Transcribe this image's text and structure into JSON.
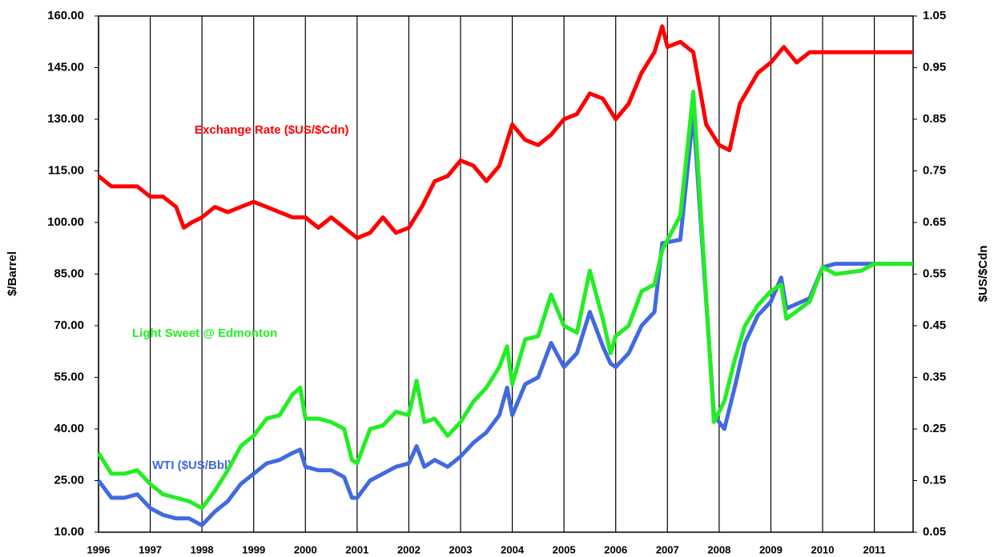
{
  "chart_data": {
    "type": "line",
    "xticks": [
      1996,
      1997,
      1998,
      1999,
      2000,
      2001,
      2002,
      2003,
      2004,
      2005,
      2006,
      2007,
      2008,
      2009,
      2010,
      2011
    ],
    "xlim": [
      1996,
      2011.75
    ],
    "ylim": [
      10,
      160
    ],
    "yticks": [
      {
        "value": 10,
        "label": "10.00"
      },
      {
        "value": 25,
        "label": "25.00"
      },
      {
        "value": 40,
        "label": "40.00"
      },
      {
        "value": 55,
        "label": "55.00"
      },
      {
        "value": 70,
        "label": "70.00"
      },
      {
        "value": 85,
        "label": "85.00"
      },
      {
        "value": 100,
        "label": "100.00"
      },
      {
        "value": 115,
        "label": "115.00"
      },
      {
        "value": 130,
        "label": "130.00"
      },
      {
        "value": 145,
        "label": "145.00"
      },
      {
        "value": 160,
        "label": "160.00"
      }
    ],
    "y2lim": [
      0.05,
      1.05
    ],
    "y2ticks": [
      0.05,
      0.15,
      0.25,
      0.35,
      0.45,
      0.55,
      0.65,
      0.75,
      0.85,
      0.95,
      1.05
    ],
    "ylabel": "$/Barrel",
    "y2label": "$US/$Cdn",
    "grid": true,
    "series": [
      {
        "name": "Exchange Rate ($US/$Cdn)",
        "color": "#ff0000",
        "axis": "y2",
        "x": [
          1996,
          1996.25,
          1996.5,
          1996.75,
          1997,
          1997.25,
          1997.5,
          1997.65,
          1997.8,
          1998,
          1998.25,
          1998.5,
          1998.75,
          1999,
          1999.25,
          1999.5,
          1999.75,
          2000,
          2000.25,
          2000.5,
          2000.75,
          2001,
          2001.25,
          2001.5,
          2001.75,
          2002,
          2002.25,
          2002.5,
          2002.75,
          2003,
          2003.25,
          2003.5,
          2003.75,
          2004,
          2004.25,
          2004.5,
          2004.75,
          2005,
          2005.25,
          2005.5,
          2005.75,
          2006,
          2006.25,
          2006.5,
          2006.75,
          2006.9,
          2007,
          2007.25,
          2007.5,
          2007.75,
          2008,
          2008.2,
          2008.4,
          2008.75,
          2009,
          2009.25,
          2009.5,
          2009.75,
          2010,
          2011.75
        ],
        "values": [
          0.74,
          0.72,
          0.72,
          0.72,
          0.7,
          0.7,
          0.68,
          0.64,
          0.65,
          0.66,
          0.68,
          0.67,
          0.68,
          0.69,
          0.68,
          0.67,
          0.66,
          0.66,
          0.64,
          0.66,
          0.64,
          0.62,
          0.63,
          0.66,
          0.63,
          0.64,
          0.68,
          0.73,
          0.74,
          0.77,
          0.76,
          0.73,
          0.76,
          0.84,
          0.81,
          0.8,
          0.82,
          0.85,
          0.86,
          0.9,
          0.89,
          0.85,
          0.88,
          0.94,
          0.98,
          1.03,
          0.99,
          1.0,
          0.98,
          0.84,
          0.8,
          0.79,
          0.88,
          0.94,
          0.96,
          0.99,
          0.96,
          0.98,
          0.98,
          0.98
        ]
      },
      {
        "name": "Light Sweet @ Edmonton",
        "color": "#22ee22",
        "x": [
          1996,
          1996.25,
          1996.5,
          1996.75,
          1997,
          1997.25,
          1997.5,
          1997.75,
          1998,
          1998.25,
          1998.5,
          1998.75,
          1999,
          1999.25,
          1999.5,
          1999.75,
          1999.9,
          2000,
          2000.25,
          2000.5,
          2000.75,
          2000.9,
          2001,
          2001.25,
          2001.5,
          2001.75,
          2002,
          2002.15,
          2002.3,
          2002.5,
          2002.75,
          2003,
          2003.25,
          2003.5,
          2003.75,
          2003.9,
          2004,
          2004.25,
          2004.5,
          2004.75,
          2005,
          2005.25,
          2005.5,
          2005.75,
          2005.9,
          2006,
          2006.25,
          2006.5,
          2006.75,
          2006.9,
          2007.25,
          2007.5,
          2007.9,
          2008.1,
          2008.3,
          2008.5,
          2008.75,
          2009,
          2009.2,
          2009.3,
          2009.75,
          2010,
          2010.25,
          2010.75,
          2011,
          2011.75
        ],
        "values": [
          33,
          27,
          27,
          28,
          24,
          21,
          20,
          19,
          17,
          22,
          28,
          35,
          38,
          43,
          44,
          50,
          52,
          43,
          43,
          42,
          40,
          31,
          30,
          40,
          41,
          45,
          44,
          54,
          42,
          43,
          38,
          42,
          48,
          52,
          58,
          64,
          53,
          66,
          67,
          79,
          70,
          68,
          86,
          72,
          62,
          67,
          70,
          80,
          82,
          92,
          102,
          138,
          42,
          48,
          60,
          70,
          76,
          80,
          82,
          72,
          77,
          87,
          85,
          86,
          88,
          88
        ]
      },
      {
        "name": "WTI ($US/Bbl)",
        "color": "#4169e1",
        "x": [
          1996,
          1996.25,
          1996.5,
          1996.75,
          1997,
          1997.25,
          1997.5,
          1997.75,
          1998,
          1998.25,
          1998.5,
          1998.75,
          1999,
          1999.25,
          1999.5,
          1999.75,
          1999.9,
          2000,
          2000.25,
          2000.5,
          2000.75,
          2000.9,
          2001,
          2001.25,
          2001.5,
          2001.75,
          2002,
          2002.15,
          2002.3,
          2002.5,
          2002.75,
          2003,
          2003.25,
          2003.5,
          2003.75,
          2003.9,
          2004,
          2004.25,
          2004.5,
          2004.75,
          2005,
          2005.25,
          2005.5,
          2005.75,
          2005.9,
          2006,
          2006.25,
          2006.5,
          2006.75,
          2006.9,
          2007.25,
          2007.5,
          2007.9,
          2008.1,
          2008.3,
          2008.5,
          2008.75,
          2009,
          2009.2,
          2009.3,
          2009.75,
          2010,
          2010.25,
          2010.75,
          2011,
          2011.75
        ],
        "values": [
          25,
          20,
          20,
          21,
          17,
          15,
          14,
          14,
          12,
          16,
          19,
          24,
          27,
          30,
          31,
          33,
          34,
          29,
          28,
          28,
          26,
          20,
          20,
          25,
          27,
          29,
          30,
          35,
          29,
          31,
          29,
          32,
          36,
          39,
          44,
          52,
          44,
          53,
          55,
          65,
          58,
          62,
          74,
          64,
          59,
          58,
          62,
          70,
          74,
          94,
          95,
          132,
          44,
          40,
          52,
          65,
          73,
          77,
          84,
          75,
          78,
          87,
          88,
          88,
          88,
          88
        ]
      }
    ]
  }
}
